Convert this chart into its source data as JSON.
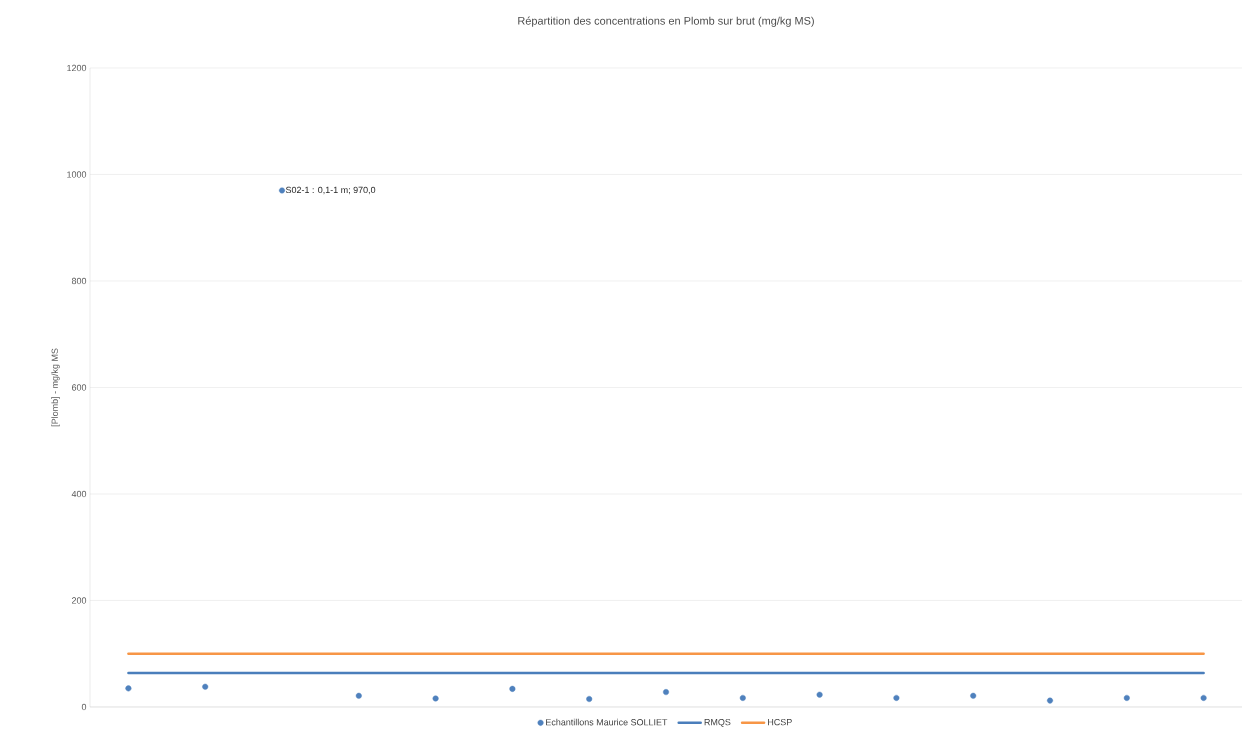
{
  "chart_data": {
    "type": "scatter",
    "title": "Répartition des concentrations en Plomb sur brut (mg/kg MS)",
    "ylabel": "[Plomb] - mg/kg MS",
    "categories": [
      null,
      null,
      null,
      null,
      null,
      null,
      null,
      null,
      null,
      null,
      null,
      null,
      null,
      null,
      null
    ],
    "series": [
      {
        "name": "Echantillons Maurice SOLLIET",
        "color": "#4f81bd",
        "values": [
          35,
          38,
          970,
          21,
          16,
          34,
          15,
          28,
          17,
          23,
          17,
          21,
          12,
          17,
          17
        ],
        "value_labels": [
          null,
          null,
          "S02-1 : 0,1-1 m; 970,0",
          null,
          null,
          null,
          null,
          null,
          null,
          null,
          null,
          null,
          null,
          null,
          null
        ]
      },
      {
        "name": "RMQS",
        "type": "line",
        "color": "#4a7ebb",
        "values": [
          64,
          64,
          64,
          64,
          64,
          64,
          64,
          64,
          64,
          64,
          64,
          64,
          64,
          64,
          64
        ]
      },
      {
        "name": "HCSP",
        "type": "line",
        "color": "#f79646",
        "values": [
          100,
          100,
          100,
          100,
          100,
          100,
          100,
          100,
          100,
          100,
          100,
          100,
          100,
          100,
          100
        ]
      }
    ],
    "ylim": [
      0,
      1200
    ],
    "yticks": [
      0,
      200,
      400,
      600,
      800,
      1000,
      1200
    ],
    "grid": "y",
    "legend": "bottom",
    "line_style": "solid"
  }
}
